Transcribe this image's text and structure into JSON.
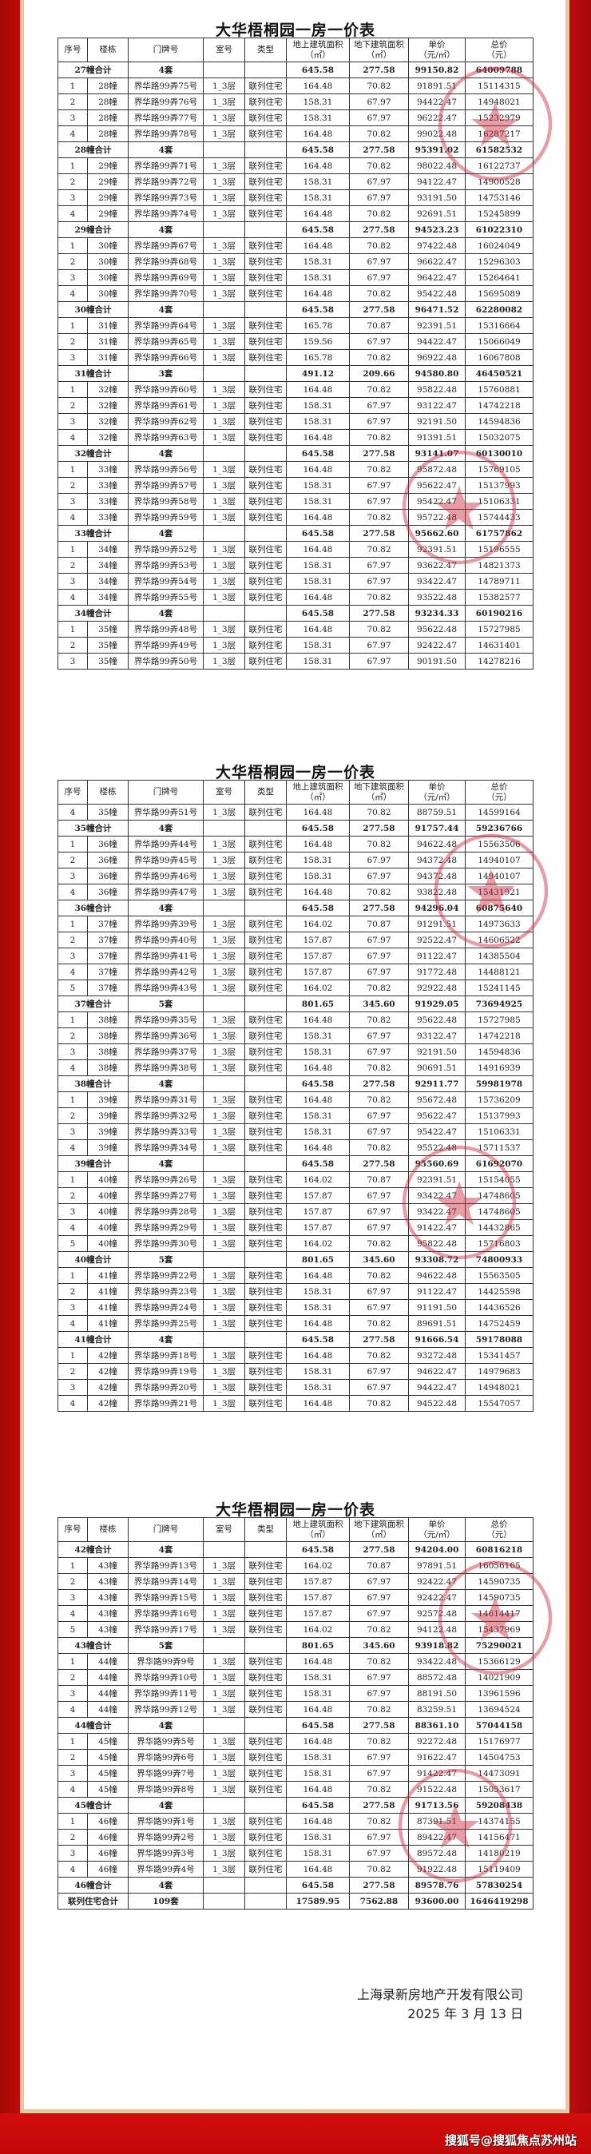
{
  "headers": [
    "序号",
    "楼栋",
    "门牌号",
    "室号",
    "类型",
    "地上建筑面积\n（㎡）",
    "地下建筑面积\n（㎡）",
    "单价\n（元/㎡）",
    "总价\n（元）"
  ],
  "colors": {
    "frame": "#c60a0a",
    "border_trim": "#e8c7a6",
    "stamp": "#c8283a"
  },
  "sheets": [
    {
      "title": "大华梧桐园一房一价表",
      "rows": [
        [
          "27幢合计",
          "4套",
          "645.58",
          "277.58",
          "99150.82",
          "64009788"
        ],
        [
          "1",
          "28幢",
          "界华路99弄75号",
          "1_3层",
          "联列住宅",
          "164.48",
          "70.82",
          "91891.51",
          "15114315"
        ],
        [
          "2",
          "28幢",
          "界华路99弄76号",
          "1_3层",
          "联列住宅",
          "158.31",
          "67.97",
          "94422.47",
          "14948021"
        ],
        [
          "3",
          "28幢",
          "界华路99弄77号",
          "1_3层",
          "联列住宅",
          "158.31",
          "67.97",
          "96222.47",
          "15232979"
        ],
        [
          "4",
          "28幢",
          "界华路99弄78号",
          "1_3层",
          "联列住宅",
          "164.48",
          "70.82",
          "99022.48",
          "16287217"
        ],
        [
          "28幢合计",
          "4套",
          "645.58",
          "277.58",
          "95391.02",
          "61582532"
        ],
        [
          "1",
          "29幢",
          "界华路99弄71号",
          "1_3层",
          "联列住宅",
          "164.48",
          "70.82",
          "98022.48",
          "16122737"
        ],
        [
          "2",
          "29幢",
          "界华路99弄72号",
          "1_3层",
          "联列住宅",
          "158.31",
          "67.97",
          "94122.47",
          "14900528"
        ],
        [
          "3",
          "29幢",
          "界华路99弄73号",
          "1_3层",
          "联列住宅",
          "158.31",
          "67.97",
          "93191.50",
          "14753146"
        ],
        [
          "4",
          "29幢",
          "界华路99弄74号",
          "1_3层",
          "联列住宅",
          "164.48",
          "70.82",
          "92691.51",
          "15245899"
        ],
        [
          "29幢合计",
          "4套",
          "645.58",
          "277.58",
          "94523.23",
          "61022310"
        ],
        [
          "1",
          "30幢",
          "界华路99弄67号",
          "1_3层",
          "联列住宅",
          "164.48",
          "70.82",
          "97422.48",
          "16024049"
        ],
        [
          "2",
          "30幢",
          "界华路99弄68号",
          "1_3层",
          "联列住宅",
          "158.31",
          "67.97",
          "96622.47",
          "15296303"
        ],
        [
          "3",
          "30幢",
          "界华路99弄69号",
          "1_3层",
          "联列住宅",
          "158.31",
          "67.97",
          "96422.47",
          "15264641"
        ],
        [
          "4",
          "30幢",
          "界华路99弄70号",
          "1_3层",
          "联列住宅",
          "164.48",
          "70.82",
          "95422.48",
          "15695089"
        ],
        [
          "30幢合计",
          "4套",
          "645.58",
          "277.58",
          "96471.52",
          "62280082"
        ],
        [
          "1",
          "31幢",
          "界华路99弄64号",
          "1_3层",
          "联列住宅",
          "165.78",
          "70.87",
          "92391.51",
          "15316664"
        ],
        [
          "2",
          "31幢",
          "界华路99弄65号",
          "1_3层",
          "联列住宅",
          "159.56",
          "67.97",
          "94422.47",
          "15066049"
        ],
        [
          "3",
          "31幢",
          "界华路99弄66号",
          "1_3层",
          "联列住宅",
          "165.78",
          "70.82",
          "96922.48",
          "16067808"
        ],
        [
          "31幢合计",
          "3套",
          "491.12",
          "209.66",
          "94580.80",
          "46450521"
        ],
        [
          "1",
          "32幢",
          "界华路99弄60号",
          "1_3层",
          "联列住宅",
          "164.48",
          "70.82",
          "95822.48",
          "15760881"
        ],
        [
          "2",
          "32幢",
          "界华路99弄61号",
          "1_3层",
          "联列住宅",
          "158.31",
          "67.97",
          "93122.47",
          "14742218"
        ],
        [
          "3",
          "32幢",
          "界华路99弄62号",
          "1_3层",
          "联列住宅",
          "158.31",
          "67.97",
          "92191.50",
          "14594836"
        ],
        [
          "4",
          "32幢",
          "界华路99弄63号",
          "1_3层",
          "联列住宅",
          "164.48",
          "70.82",
          "91391.51",
          "15032075"
        ],
        [
          "32幢合计",
          "4套",
          "645.58",
          "277.58",
          "93141.07",
          "60130010"
        ],
        [
          "1",
          "33幢",
          "界华路99弄56号",
          "1_3层",
          "联列住宅",
          "164.48",
          "70.82",
          "95872.48",
          "15769105"
        ],
        [
          "2",
          "33幢",
          "界华路99弄57号",
          "1_3层",
          "联列住宅",
          "158.31",
          "67.97",
          "95622.47",
          "15137993"
        ],
        [
          "3",
          "33幢",
          "界华路99弄58号",
          "1_3层",
          "联列住宅",
          "158.31",
          "67.97",
          "95422.47",
          "15106331"
        ],
        [
          "4",
          "33幢",
          "界华路99弄59号",
          "1_3层",
          "联列住宅",
          "164.48",
          "70.82",
          "95722.48",
          "15744433"
        ],
        [
          "33幢合计",
          "4套",
          "645.58",
          "277.58",
          "95662.60",
          "61757862"
        ],
        [
          "1",
          "34幢",
          "界华路99弄52号",
          "1_3层",
          "联列住宅",
          "164.48",
          "70.82",
          "92391.51",
          "15196555"
        ],
        [
          "2",
          "34幢",
          "界华路99弄53号",
          "1_3层",
          "联列住宅",
          "158.31",
          "67.97",
          "93622.47",
          "14821373"
        ],
        [
          "3",
          "34幢",
          "界华路99弄54号",
          "1_3层",
          "联列住宅",
          "158.31",
          "67.97",
          "93422.47",
          "14789711"
        ],
        [
          "4",
          "34幢",
          "界华路99弄55号",
          "1_3层",
          "联列住宅",
          "164.48",
          "70.82",
          "93522.48",
          "15382577"
        ],
        [
          "34幢合计",
          "4套",
          "645.58",
          "277.58",
          "93234.33",
          "60190216"
        ],
        [
          "1",
          "35幢",
          "界华路99弄48号",
          "1_3层",
          "联列住宅",
          "164.48",
          "70.82",
          "95622.48",
          "15727985"
        ],
        [
          "2",
          "35幢",
          "界华路99弄49号",
          "1_3层",
          "联列住宅",
          "158.31",
          "67.97",
          "92422.47",
          "14631401"
        ],
        [
          "3",
          "35幢",
          "界华路99弄50号",
          "1_3层",
          "联列住宅",
          "158.31",
          "67.97",
          "90191.50",
          "14278216"
        ]
      ]
    },
    {
      "title": "大华梧桐园一房一价表",
      "rows": [
        [
          "4",
          "35幢",
          "界华路99弄51号",
          "1_3层",
          "联列住宅",
          "164.48",
          "70.82",
          "88759.51",
          "14599164"
        ],
        [
          "35幢合计",
          "4套",
          "645.58",
          "277.58",
          "91757.44",
          "59236766"
        ],
        [
          "1",
          "36幢",
          "界华路99弄44号",
          "1_3层",
          "联列住宅",
          "164.48",
          "70.82",
          "94622.48",
          "15563506"
        ],
        [
          "2",
          "36幢",
          "界华路99弄45号",
          "1_3层",
          "联列住宅",
          "158.31",
          "67.97",
          "94372.48",
          "14940107"
        ],
        [
          "3",
          "36幢",
          "界华路99弄46号",
          "1_3层",
          "联列住宅",
          "158.31",
          "67.97",
          "94372.48",
          "14940107"
        ],
        [
          "4",
          "36幢",
          "界华路99弄47号",
          "1_3层",
          "联列住宅",
          "164.48",
          "70.82",
          "93822.48",
          "15431921"
        ],
        [
          "36幢合计",
          "4套",
          "645.58",
          "277.58",
          "94296.04",
          "60875640"
        ],
        [
          "1",
          "37幢",
          "界华路99弄39号",
          "1_3层",
          "联列住宅",
          "164.02",
          "70.87",
          "91291.51",
          "14973633"
        ],
        [
          "2",
          "37幢",
          "界华路99弄40号",
          "1_3层",
          "联列住宅",
          "157.87",
          "67.97",
          "92522.47",
          "14606522"
        ],
        [
          "3",
          "37幢",
          "界华路99弄41号",
          "1_3层",
          "联列住宅",
          "157.87",
          "67.97",
          "91122.47",
          "14385504"
        ],
        [
          "4",
          "37幢",
          "界华路99弄42号",
          "1_3层",
          "联列住宅",
          "157.87",
          "67.97",
          "91772.48",
          "14488121"
        ],
        [
          "5",
          "37幢",
          "界华路99弄43号",
          "1_3层",
          "联列住宅",
          "164.02",
          "70.82",
          "92922.48",
          "15241145"
        ],
        [
          "37幢合计",
          "5套",
          "801.65",
          "345.60",
          "91929.05",
          "73694925"
        ],
        [
          "1",
          "38幢",
          "界华路99弄35号",
          "1_3层",
          "联列住宅",
          "164.48",
          "70.82",
          "95622.48",
          "15727985"
        ],
        [
          "2",
          "38幢",
          "界华路99弄36号",
          "1_3层",
          "联列住宅",
          "158.31",
          "67.97",
          "93122.47",
          "14742218"
        ],
        [
          "3",
          "38幢",
          "界华路99弄37号",
          "1_3层",
          "联列住宅",
          "158.31",
          "67.97",
          "92191.50",
          "14594836"
        ],
        [
          "4",
          "38幢",
          "界华路99弄38号",
          "1_3层",
          "联列住宅",
          "164.48",
          "70.82",
          "90691.51",
          "14916939"
        ],
        [
          "38幢合计",
          "4套",
          "645.58",
          "277.58",
          "92911.77",
          "59981978"
        ],
        [
          "1",
          "39幢",
          "界华路99弄31号",
          "1_3层",
          "联列住宅",
          "164.48",
          "70.82",
          "95672.48",
          "15736209"
        ],
        [
          "2",
          "39幢",
          "界华路99弄32号",
          "1_3层",
          "联列住宅",
          "158.31",
          "67.97",
          "95622.47",
          "15137993"
        ],
        [
          "3",
          "39幢",
          "界华路99弄33号",
          "1_3层",
          "联列住宅",
          "158.31",
          "67.97",
          "95422.47",
          "15106331"
        ],
        [
          "4",
          "39幢",
          "界华路99弄34号",
          "1_3层",
          "联列住宅",
          "164.48",
          "70.82",
          "95522.48",
          "15711537"
        ],
        [
          "39幢合计",
          "4套",
          "645.58",
          "277.58",
          "95560.69",
          "61692070"
        ],
        [
          "1",
          "40幢",
          "界华路99弄26号",
          "1_3层",
          "联列住宅",
          "164.02",
          "70.87",
          "92391.51",
          "15154055"
        ],
        [
          "2",
          "40幢",
          "界华路99弄27号",
          "1_3层",
          "联列住宅",
          "157.87",
          "67.97",
          "93422.47",
          "14748605"
        ],
        [
          "3",
          "40幢",
          "界华路99弄28号",
          "1_3层",
          "联列住宅",
          "157.87",
          "67.97",
          "93422.47",
          "14748605"
        ],
        [
          "4",
          "40幢",
          "界华路99弄29号",
          "1_3层",
          "联列住宅",
          "157.87",
          "67.97",
          "91422.47",
          "14432865"
        ],
        [
          "5",
          "40幢",
          "界华路99弄30号",
          "1_3层",
          "联列住宅",
          "164.02",
          "70.82",
          "95822.48",
          "15716803"
        ],
        [
          "40幢合计",
          "5套",
          "801.65",
          "345.60",
          "93308.72",
          "74800933"
        ],
        [
          "1",
          "41幢",
          "界华路99弄22号",
          "1_3层",
          "联列住宅",
          "164.48",
          "70.82",
          "94622.48",
          "15563505"
        ],
        [
          "2",
          "41幢",
          "界华路99弄23号",
          "1_3层",
          "联列住宅",
          "158.31",
          "67.97",
          "91122.47",
          "14425598"
        ],
        [
          "3",
          "41幢",
          "界华路99弄24号",
          "1_3层",
          "联列住宅",
          "158.31",
          "67.97",
          "91191.50",
          "14436526"
        ],
        [
          "4",
          "41幢",
          "界华路99弄25号",
          "1_3层",
          "联列住宅",
          "164.48",
          "70.82",
          "89691.51",
          "14752459"
        ],
        [
          "41幢合计",
          "4套",
          "645.58",
          "277.58",
          "91666.54",
          "59178088"
        ],
        [
          "1",
          "42幢",
          "界华路99弄18号",
          "1_3层",
          "联列住宅",
          "164.48",
          "70.82",
          "93272.48",
          "15341457"
        ],
        [
          "2",
          "42幢",
          "界华路99弄19号",
          "1_3层",
          "联列住宅",
          "158.31",
          "67.97",
          "94622.47",
          "14979683"
        ],
        [
          "3",
          "42幢",
          "界华路99弄20号",
          "1_3层",
          "联列住宅",
          "158.31",
          "67.97",
          "94422.47",
          "14948021"
        ],
        [
          "4",
          "42幢",
          "界华路99弄21号",
          "1_3层",
          "联列住宅",
          "164.48",
          "70.82",
          "94522.48",
          "15547057"
        ]
      ]
    },
    {
      "title": "大华梧桐园一房一价表",
      "rows": [
        [
          "42幢合计",
          "4套",
          "645.58",
          "277.58",
          "94204.00",
          "60816218"
        ],
        [
          "1",
          "43幢",
          "界华路99弄13号",
          "1_3层",
          "联列住宅",
          "164.02",
          "70.87",
          "97891.51",
          "16056165"
        ],
        [
          "2",
          "43幢",
          "界华路99弄14号",
          "1_3层",
          "联列住宅",
          "157.87",
          "67.97",
          "92422.47",
          "14590735"
        ],
        [
          "3",
          "43幢",
          "界华路99弄15号",
          "1_3层",
          "联列住宅",
          "157.87",
          "67.97",
          "92422.47",
          "14590735"
        ],
        [
          "4",
          "43幢",
          "界华路99弄16号",
          "1_3层",
          "联列住宅",
          "157.87",
          "67.97",
          "92572.48",
          "14614417"
        ],
        [
          "5",
          "43幢",
          "界华路99弄17号",
          "1_3层",
          "联列住宅",
          "164.02",
          "70.82",
          "94122.48",
          "15437969"
        ],
        [
          "43幢合计",
          "5套",
          "801.65",
          "345.60",
          "93918.82",
          "75290021"
        ],
        [
          "1",
          "44幢",
          "界华路99弄9号",
          "1_3层",
          "联列住宅",
          "164.48",
          "70.82",
          "93422.48",
          "15366129"
        ],
        [
          "2",
          "44幢",
          "界华路99弄10号",
          "1_3层",
          "联列住宅",
          "158.31",
          "67.97",
          "88572.48",
          "14021909"
        ],
        [
          "3",
          "44幢",
          "界华路99弄11号",
          "1_3层",
          "联列住宅",
          "158.31",
          "67.97",
          "88191.50",
          "13961596"
        ],
        [
          "4",
          "44幢",
          "界华路99弄12号",
          "1_3层",
          "联列住宅",
          "164.48",
          "70.82",
          "83259.51",
          "13694524"
        ],
        [
          "44幢合计",
          "4套",
          "645.58",
          "277.58",
          "88361.10",
          "57044158"
        ],
        [
          "1",
          "45幢",
          "界华路99弄5号",
          "1_3层",
          "联列住宅",
          "164.48",
          "70.82",
          "92272.48",
          "15176977"
        ],
        [
          "2",
          "45幢",
          "界华路99弄6号",
          "1_3层",
          "联列住宅",
          "158.31",
          "67.97",
          "91622.47",
          "14504753"
        ],
        [
          "3",
          "45幢",
          "界华路99弄7号",
          "1_3层",
          "联列住宅",
          "158.31",
          "67.97",
          "91422.47",
          "14473091"
        ],
        [
          "4",
          "45幢",
          "界华路99弄8号",
          "1_3层",
          "联列住宅",
          "164.48",
          "70.82",
          "91522.48",
          "15053617"
        ],
        [
          "45幢合计",
          "4套",
          "645.58",
          "277.58",
          "91713.56",
          "59208438"
        ],
        [
          "1",
          "46幢",
          "界华路99弄1号",
          "1_3层",
          "联列住宅",
          "164.48",
          "70.82",
          "87391.51",
          "14374155"
        ],
        [
          "2",
          "46幢",
          "界华路99弄2号",
          "1_3层",
          "联列住宅",
          "158.31",
          "67.97",
          "89422.47",
          "14156471"
        ],
        [
          "3",
          "46幢",
          "界华路99弄3号",
          "1_3层",
          "联列住宅",
          "158.31",
          "67.97",
          "89572.48",
          "14180219"
        ],
        [
          "4",
          "46幢",
          "界华路99弄4号",
          "1_3层",
          "联列住宅",
          "164.48",
          "70.82",
          "91922.48",
          "15119409"
        ],
        [
          "46幢合计",
          "4套",
          "645.58",
          "277.58",
          "89578.76",
          "57830254"
        ],
        [
          "联列住宅合计",
          "109套",
          "17589.95",
          "7562.88",
          "93600.00",
          "1646419298"
        ]
      ]
    }
  ],
  "footer": {
    "company": "上海录新房地产开发有限公司",
    "date": "2025 年 3 月 13 日"
  },
  "watermark": "搜狐号@搜狐焦点苏州站"
}
